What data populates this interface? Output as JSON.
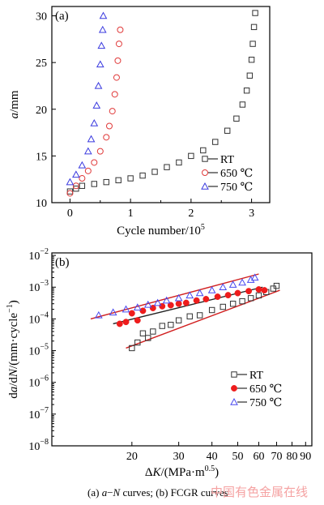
{
  "chart_data": [
    {
      "panel": "(a)",
      "type": "scatter",
      "xlabel": "Cycle number/10^5",
      "ylabel": "a/mm",
      "xlim": [
        -0.3,
        3.3
      ],
      "ylim": [
        10,
        31
      ],
      "xticks": [
        "0",
        "1",
        "2",
        "3"
      ],
      "yticks": [
        "10",
        "15",
        "20",
        "25",
        "30"
      ],
      "legend_position": "lower-right",
      "series": [
        {
          "name": "RT",
          "marker": "square",
          "color": "#333333",
          "x": [
            0.0,
            0.1,
            0.2,
            0.4,
            0.6,
            0.8,
            1.0,
            1.2,
            1.4,
            1.6,
            1.8,
            2.0,
            2.2,
            2.4,
            2.6,
            2.75,
            2.85,
            2.92,
            2.97,
            3.0,
            3.02,
            3.04,
            3.06
          ],
          "y": [
            11.2,
            11.5,
            11.8,
            12.0,
            12.2,
            12.4,
            12.6,
            12.9,
            13.3,
            13.8,
            14.3,
            15.0,
            15.6,
            16.5,
            17.7,
            19.0,
            20.5,
            22.0,
            23.6,
            25.3,
            27.0,
            28.8,
            30.3
          ]
        },
        {
          "name": "650 ℃",
          "marker": "circle",
          "color": "#e03a3a",
          "x": [
            0.0,
            0.1,
            0.2,
            0.3,
            0.4,
            0.5,
            0.6,
            0.65,
            0.7,
            0.74,
            0.77,
            0.79,
            0.81,
            0.83
          ],
          "y": [
            11.0,
            11.8,
            12.6,
            13.4,
            14.3,
            15.5,
            17.0,
            18.2,
            19.8,
            21.6,
            23.4,
            25.2,
            27.0,
            28.5
          ]
        },
        {
          "name": "750 ℃",
          "marker": "triangle",
          "color": "#3a3adf",
          "x": [
            0.0,
            0.1,
            0.2,
            0.3,
            0.35,
            0.4,
            0.44,
            0.47,
            0.5,
            0.52,
            0.54,
            0.55
          ],
          "y": [
            12.2,
            13.0,
            14.0,
            15.5,
            16.8,
            18.5,
            20.4,
            22.5,
            24.8,
            26.8,
            28.5,
            30.0
          ]
        }
      ]
    },
    {
      "panel": "(b)",
      "type": "scatter",
      "xlabel": "ΔK/(MPa·m^0.5)",
      "ylabel": "da/dN/(mm·cycle^-1)",
      "xscale": "log",
      "yscale": "log",
      "xlim": [
        10,
        95
      ],
      "ylim": [
        1e-08,
        0.012
      ],
      "xticks": [
        {
          "v": 10,
          "label": ""
        },
        {
          "v": 20,
          "label": "20"
        },
        {
          "v": 30,
          "label": "30"
        },
        {
          "v": 40,
          "label": "40"
        },
        {
          "v": 50,
          "label": "50"
        },
        {
          "v": 60,
          "label": "60"
        },
        {
          "v": 70,
          "label": "70"
        },
        {
          "v": 80,
          "label": "80"
        },
        {
          "v": 90,
          "label": "90"
        }
      ],
      "ytick_exponents": [
        -8,
        -7,
        -6,
        -5,
        -4,
        -3,
        -2
      ],
      "legend_position": "lower-right",
      "series": [
        {
          "name": "RT",
          "marker": "square",
          "color": "#333333",
          "x": [
            20,
            21,
            22,
            23,
            24,
            26,
            28,
            30,
            33,
            36,
            40,
            44,
            48,
            52,
            56,
            60,
            64,
            68,
            70
          ],
          "y": [
            1.2e-05,
            1.8e-05,
            3.5e-05,
            2.5e-05,
            4e-05,
            6e-05,
            6.5e-05,
            9e-05,
            0.00012,
            0.00013,
            0.00019,
            0.00024,
            0.0003,
            0.00036,
            0.00045,
            0.00055,
            0.0007,
            0.0009,
            0.0011
          ]
        },
        {
          "name": "650 ℃",
          "marker": "filled-circle",
          "color": "#ee1c1c",
          "x": [
            18,
            19,
            20,
            21,
            22,
            24,
            26,
            28,
            30,
            32,
            35,
            38,
            42,
            46,
            50,
            55,
            60,
            63
          ],
          "y": [
            7e-05,
            8e-05,
            0.00015,
            9e-05,
            0.00018,
            0.00022,
            0.00025,
            0.00027,
            0.0003,
            0.00032,
            0.00038,
            0.00042,
            0.0005,
            0.00056,
            0.00065,
            0.00075,
            0.00085,
            0.0008
          ]
        },
        {
          "name": "750 ℃",
          "marker": "triangle",
          "color": "#4848ef",
          "x": [
            15,
            17,
            19,
            21,
            23,
            25,
            27,
            30,
            33,
            36,
            40,
            44,
            48,
            52,
            56,
            58
          ],
          "y": [
            0.00013,
            0.00016,
            0.0002,
            0.00023,
            0.00028,
            0.00032,
            0.00038,
            0.00045,
            0.00055,
            0.00065,
            0.0008,
            0.001,
            0.0012,
            0.0014,
            0.0017,
            0.002
          ]
        }
      ],
      "fit_lines": [
        {
          "series": "RT",
          "color": "#d11f1f",
          "x": [
            19,
            72
          ],
          "y": [
            1.2e-05,
            0.0008
          ]
        },
        {
          "series": "650 ℃",
          "color": "#222222",
          "x": [
            17,
            62
          ],
          "y": [
            7e-05,
            0.001
          ]
        },
        {
          "series": "750 ℃",
          "color": "#d11f1f",
          "x": [
            14,
            60
          ],
          "y": [
            0.0001,
            0.0026
          ]
        }
      ]
    }
  ],
  "caption": {
    "text": "(a) a−N curves; (b)   FCGR curves",
    "watermark": "中国有色金属在线"
  }
}
